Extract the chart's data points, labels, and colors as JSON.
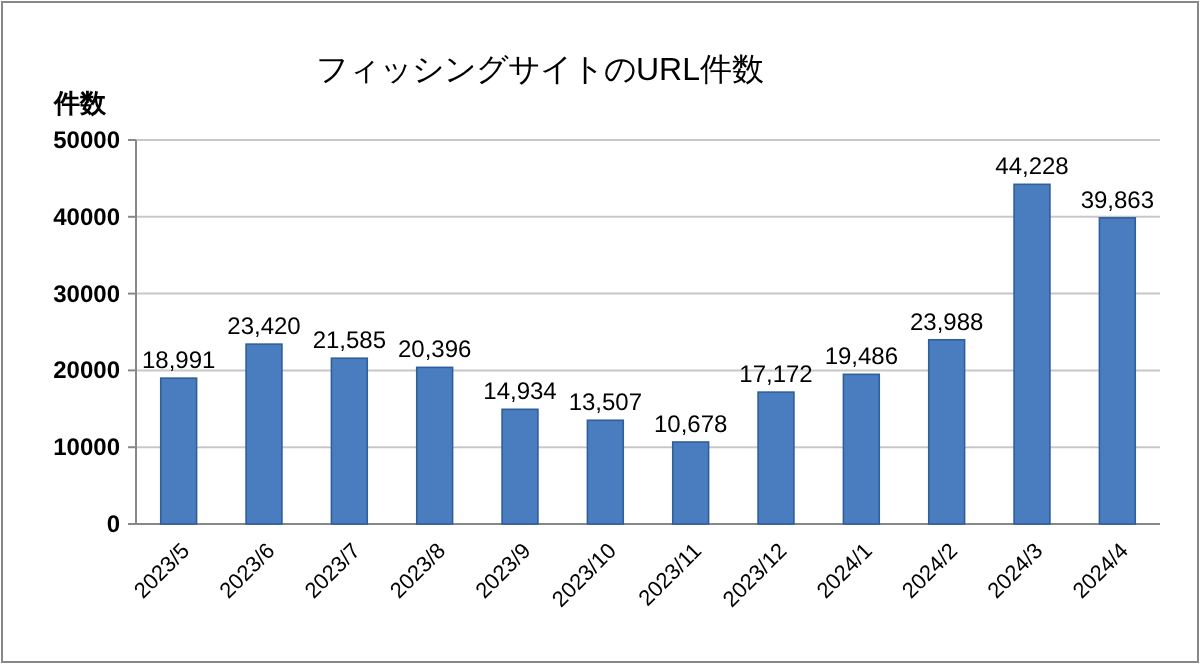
{
  "chart_data": {
    "type": "bar",
    "title": "フィッシングサイトのURL件数",
    "ylabel": "件数",
    "categories": [
      "2023/5",
      "2023/6",
      "2023/7",
      "2023/8",
      "2023/9",
      "2023/10",
      "2023/11",
      "2023/12",
      "2024/1",
      "2024/2",
      "2024/3",
      "2024/4"
    ],
    "values": [
      18991,
      23420,
      21585,
      20396,
      14934,
      13507,
      10678,
      17172,
      19486,
      23988,
      44228,
      39863
    ],
    "value_labels": [
      "18,991",
      "23,420",
      "21,585",
      "20,396",
      "14,934",
      "13,507",
      "10,678",
      "17,172",
      "19,486",
      "23,988",
      "44,228",
      "39,863"
    ],
    "color": "#4a7cc0",
    "ylim": [
      0,
      50000
    ],
    "yticks": [
      0,
      10000,
      20000,
      30000,
      40000,
      50000
    ],
    "grid": "y"
  }
}
